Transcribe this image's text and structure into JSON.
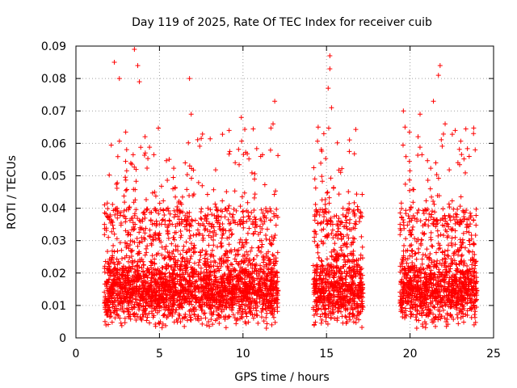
{
  "chart_data": {
    "type": "scatter",
    "title": "Day 119 of 2025, Rate Of TEC Index for receiver cuib",
    "xlabel": "GPS time / hours",
    "ylabel": "ROTI / TECUs",
    "xlim": [
      0,
      25
    ],
    "ylim": [
      0,
      0.09
    ],
    "x_ticks": [
      "0",
      "5",
      "10",
      "15",
      "20",
      "25"
    ],
    "y_ticks": [
      "0",
      "0.01",
      "0.02",
      "0.03",
      "0.04",
      "0.05",
      "0.06",
      "0.07",
      "0.08",
      "0.09"
    ],
    "grid": true,
    "marker": "+",
    "series": [
      {
        "color": "#ff0000",
        "coverage": [
          {
            "x_start": 1.7,
            "x_end": 12.1
          },
          {
            "x_start": 14.2,
            "x_end": 17.2
          },
          {
            "x_start": 19.4,
            "x_end": 24.0
          }
        ],
        "sample_points": [
          {
            "x": 2.3,
            "y": 0.085
          },
          {
            "x": 3.5,
            "y": 0.089
          },
          {
            "x": 3.7,
            "y": 0.084
          },
          {
            "x": 2.6,
            "y": 0.08
          },
          {
            "x": 3.8,
            "y": 0.079
          },
          {
            "x": 6.8,
            "y": 0.08
          },
          {
            "x": 6.9,
            "y": 0.069
          },
          {
            "x": 9.9,
            "y": 0.068
          },
          {
            "x": 11.9,
            "y": 0.073
          },
          {
            "x": 11.8,
            "y": 0.066
          },
          {
            "x": 14.5,
            "y": 0.065
          },
          {
            "x": 15.2,
            "y": 0.087
          },
          {
            "x": 15.2,
            "y": 0.083
          },
          {
            "x": 15.1,
            "y": 0.077
          },
          {
            "x": 15.3,
            "y": 0.071
          },
          {
            "x": 19.6,
            "y": 0.07
          },
          {
            "x": 19.7,
            "y": 0.065
          },
          {
            "x": 20.6,
            "y": 0.069
          },
          {
            "x": 21.4,
            "y": 0.073
          },
          {
            "x": 21.7,
            "y": 0.081
          },
          {
            "x": 21.8,
            "y": 0.084
          },
          {
            "x": 22.1,
            "y": 0.066
          },
          {
            "x": 23.8,
            "y": 0.063
          },
          {
            "x": 23.9,
            "y": 0.058
          },
          {
            "x": 1.8,
            "y": 0.004
          },
          {
            "x": 11.4,
            "y": 0.003
          },
          {
            "x": 20.4,
            "y": 0.003
          }
        ]
      }
    ]
  }
}
